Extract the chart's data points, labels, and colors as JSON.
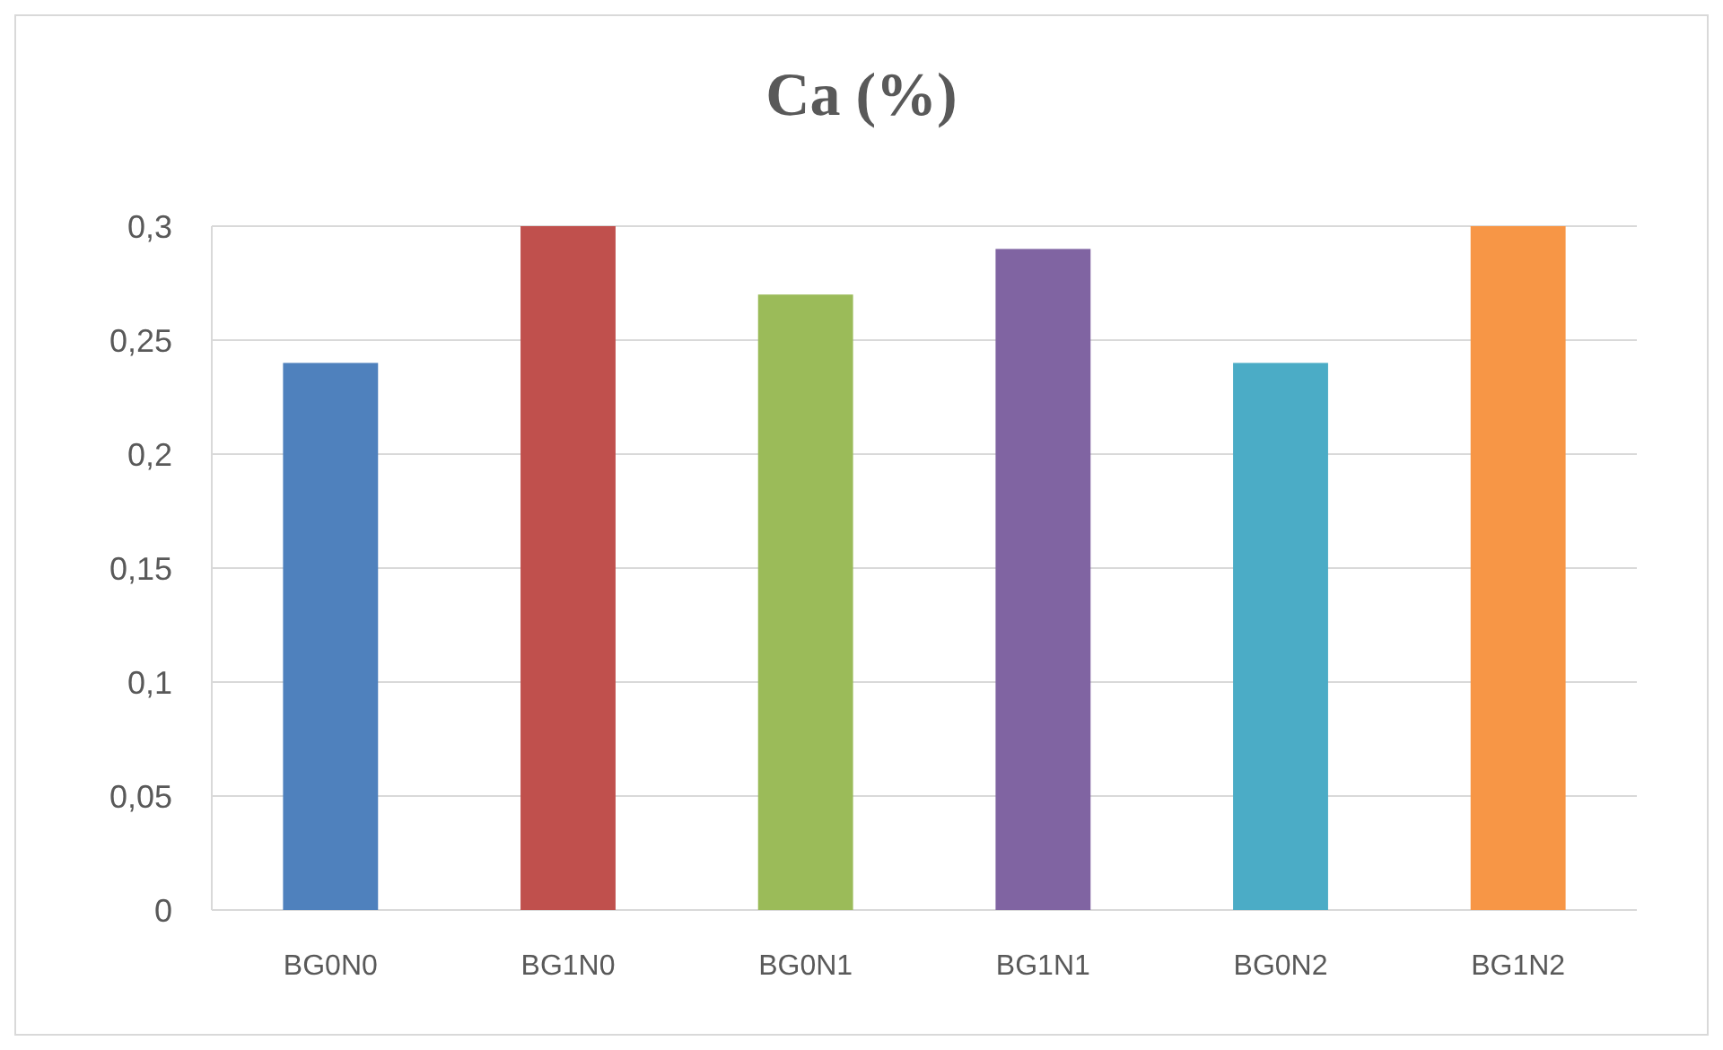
{
  "chart_data": {
    "type": "bar",
    "title": "Ca (%)",
    "categories": [
      "BG0N0",
      "BG1N0",
      "BG0N1",
      "BG1N1",
      "BG0N2",
      "BG1N2"
    ],
    "values": [
      0.24,
      0.3,
      0.27,
      0.29,
      0.24,
      0.3
    ],
    "colors": [
      "#4f81bd",
      "#c0504d",
      "#9bbb59",
      "#8064a2",
      "#4bacc6",
      "#f79646"
    ],
    "ylim": [
      0,
      0.3
    ],
    "yticks": [
      0,
      {
        "value": 0.05,
        "label": "0,05"
      },
      {
        "value": 0.1,
        "label": "0,1"
      },
      {
        "value": 0.15,
        "label": "0,15"
      },
      {
        "value": 0.2,
        "label": "0,2"
      },
      {
        "value": 0.25,
        "label": "0,25"
      },
      {
        "value": 0.3,
        "label": "0,3"
      }
    ],
    "grid": "y"
  }
}
